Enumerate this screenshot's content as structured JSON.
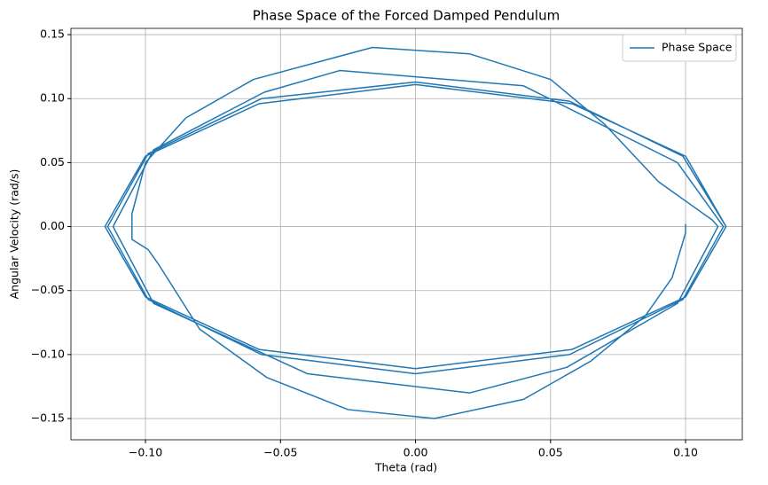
{
  "chart_data": {
    "type": "line",
    "title": "Phase Space of the Forced Damped Pendulum",
    "xlabel": "Theta (rad)",
    "ylabel": "Angular Velocity (rad/s)",
    "x": [
      0.1,
      0.1,
      0.095,
      0.085,
      0.065,
      0.04,
      0.007,
      -0.025,
      -0.055,
      -0.08,
      -0.095,
      -0.099,
      -0.105,
      -0.105,
      -0.1,
      -0.085,
      -0.06,
      -0.016,
      0.02,
      0.05,
      0.07,
      0.09,
      0.1,
      0.11,
      0.112,
      0.097,
      0.056,
      0.02,
      -0.04,
      -0.097,
      -0.112,
      -0.097,
      -0.056,
      -0.028,
      0.04,
      0.097,
      0.114,
      0.099,
      0.057,
      0.0,
      -0.057,
      -0.099,
      -0.114,
      -0.099,
      -0.057,
      0.0,
      0.057,
      0.099,
      0.115,
      0.1,
      0.058,
      0.0,
      -0.058,
      -0.1,
      -0.115,
      -0.1,
      -0.058,
      0.0,
      0.058,
      0.1,
      0.115
    ],
    "series": [
      {
        "name": "Phase Space",
        "color": "#1f77b4",
        "values": [
          0.002,
          -0.005,
          -0.04,
          -0.07,
          -0.105,
          -0.135,
          -0.15,
          -0.143,
          -0.118,
          -0.08,
          -0.03,
          -0.018,
          -0.01,
          0.01,
          0.05,
          0.085,
          0.115,
          0.14,
          0.135,
          0.115,
          0.08,
          0.035,
          0.02,
          0.005,
          0.0,
          -0.06,
          -0.11,
          -0.13,
          -0.115,
          -0.06,
          0.0,
          0.06,
          0.105,
          0.122,
          0.11,
          0.05,
          0.0,
          -0.057,
          -0.1,
          -0.115,
          -0.1,
          -0.057,
          0.0,
          0.057,
          0.1,
          0.113,
          0.098,
          0.055,
          0.0,
          -0.055,
          -0.096,
          -0.111,
          -0.096,
          -0.055,
          0.0,
          0.055,
          0.096,
          0.111,
          0.096,
          0.055,
          0.0
        ]
      }
    ],
    "xlim": [
      -0.1276,
      0.121
    ],
    "ylim": [
      -0.1666,
      0.1549
    ],
    "xticks": [
      {
        "value": -0.1,
        "label": "−0.10"
      },
      {
        "value": -0.05,
        "label": "−0.05"
      },
      {
        "value": 0,
        "label": "0.00"
      },
      {
        "value": 0.05,
        "label": "0.05"
      },
      {
        "value": 0.1,
        "label": "0.10"
      }
    ],
    "yticks": [
      {
        "value": -0.15,
        "label": "−0.15"
      },
      {
        "value": -0.1,
        "label": "−0.10"
      },
      {
        "value": -0.05,
        "label": "−0.05"
      },
      {
        "value": 0,
        "label": "0.00"
      },
      {
        "value": 0.05,
        "label": "0.05"
      },
      {
        "value": 0.1,
        "label": "0.10"
      },
      {
        "value": 0.15,
        "label": "0.15"
      }
    ],
    "grid": true,
    "legend": "upper right"
  }
}
